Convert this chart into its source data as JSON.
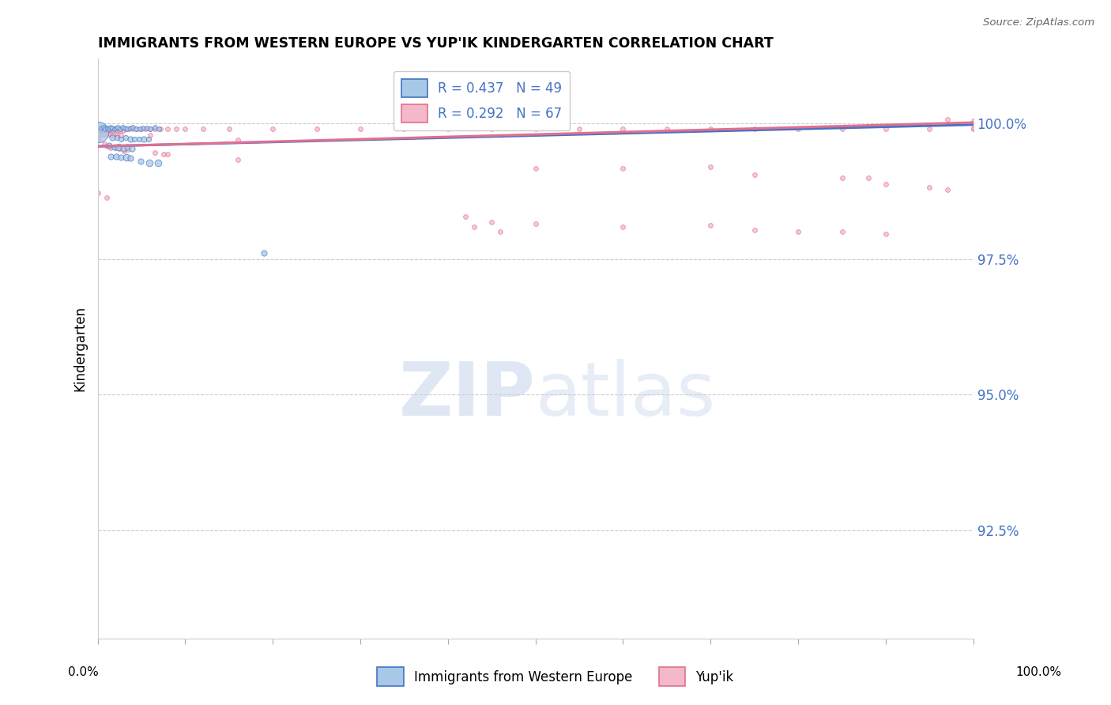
{
  "title": "IMMIGRANTS FROM WESTERN EUROPE VS YUP'IK KINDERGARTEN CORRELATION CHART",
  "source": "Source: ZipAtlas.com",
  "ylabel": "Kindergarten",
  "ytick_labels": [
    "100.0%",
    "97.5%",
    "95.0%",
    "92.5%"
  ],
  "ytick_values": [
    1.0,
    0.975,
    0.95,
    0.925
  ],
  "xlim": [
    0.0,
    1.0
  ],
  "ylim": [
    0.905,
    1.012
  ],
  "color_blue": "#a8c8e8",
  "color_pink": "#f4b8c8",
  "line_blue": "#4472c4",
  "line_pink": "#e07090",
  "watermark_color": "#dde8f4",
  "blue_points": [
    [
      0.0,
      0.9985,
      55
    ],
    [
      0.004,
      0.9992,
      12
    ],
    [
      0.007,
      0.9993,
      12
    ],
    [
      0.009,
      0.999,
      12
    ],
    [
      0.011,
      0.9992,
      12
    ],
    [
      0.013,
      0.9991,
      12
    ],
    [
      0.015,
      0.9993,
      12
    ],
    [
      0.017,
      0.9992,
      12
    ],
    [
      0.019,
      0.9991,
      12
    ],
    [
      0.021,
      0.9992,
      12
    ],
    [
      0.023,
      0.9993,
      12
    ],
    [
      0.026,
      0.9991,
      12
    ],
    [
      0.028,
      0.9993,
      12
    ],
    [
      0.031,
      0.9992,
      12
    ],
    [
      0.034,
      0.999,
      12
    ],
    [
      0.037,
      0.9992,
      12
    ],
    [
      0.04,
      0.9993,
      12
    ],
    [
      0.044,
      0.9991,
      12
    ],
    [
      0.048,
      0.999,
      12
    ],
    [
      0.052,
      0.9992,
      12
    ],
    [
      0.056,
      0.9992,
      12
    ],
    [
      0.06,
      0.9991,
      12
    ],
    [
      0.065,
      0.9993,
      12
    ],
    [
      0.07,
      0.9991,
      12
    ],
    [
      0.017,
      0.9975,
      15
    ],
    [
      0.022,
      0.9975,
      13
    ],
    [
      0.027,
      0.9972,
      13
    ],
    [
      0.032,
      0.9975,
      13
    ],
    [
      0.037,
      0.9972,
      15
    ],
    [
      0.042,
      0.9972,
      13
    ],
    [
      0.047,
      0.9972,
      13
    ],
    [
      0.053,
      0.9972,
      15
    ],
    [
      0.058,
      0.9972,
      13
    ],
    [
      0.013,
      0.996,
      15
    ],
    [
      0.019,
      0.9957,
      15
    ],
    [
      0.024,
      0.9957,
      18
    ],
    [
      0.029,
      0.9954,
      15
    ],
    [
      0.034,
      0.9957,
      15
    ],
    [
      0.039,
      0.9954,
      15
    ],
    [
      0.015,
      0.994,
      15
    ],
    [
      0.021,
      0.994,
      15
    ],
    [
      0.027,
      0.9938,
      15
    ],
    [
      0.033,
      0.9938,
      18
    ],
    [
      0.037,
      0.9936,
      15
    ],
    [
      0.049,
      0.993,
      15
    ],
    [
      0.059,
      0.9928,
      18
    ],
    [
      0.069,
      0.9928,
      18
    ],
    [
      0.19,
      0.9762,
      15
    ]
  ],
  "pink_points": [
    [
      0.0,
      0.999,
      12
    ],
    [
      0.002,
      0.9988,
      12
    ],
    [
      0.004,
      0.999,
      12
    ],
    [
      0.006,
      0.9988,
      12
    ],
    [
      0.008,
      0.9988,
      12
    ],
    [
      0.01,
      0.9988,
      12
    ],
    [
      0.012,
      0.9988,
      12
    ],
    [
      0.014,
      0.9988,
      12
    ],
    [
      0.016,
      0.9988,
      12
    ],
    [
      0.018,
      0.9988,
      12
    ],
    [
      0.02,
      0.9988,
      12
    ],
    [
      0.023,
      0.9988,
      12
    ],
    [
      0.026,
      0.9988,
      12
    ],
    [
      0.029,
      0.9988,
      12
    ],
    [
      0.032,
      0.999,
      12
    ],
    [
      0.036,
      0.999,
      12
    ],
    [
      0.04,
      0.999,
      12
    ],
    [
      0.045,
      0.999,
      12
    ],
    [
      0.05,
      0.999,
      12
    ],
    [
      0.055,
      0.999,
      12
    ],
    [
      0.06,
      0.999,
      12
    ],
    [
      0.065,
      0.999,
      12
    ],
    [
      0.072,
      0.999,
      12
    ],
    [
      0.08,
      0.999,
      12
    ],
    [
      0.09,
      0.999,
      12
    ],
    [
      0.1,
      0.999,
      12
    ],
    [
      0.12,
      0.999,
      12
    ],
    [
      0.15,
      0.999,
      12
    ],
    [
      0.2,
      0.999,
      12
    ],
    [
      0.25,
      0.999,
      12
    ],
    [
      0.3,
      0.999,
      12
    ],
    [
      0.35,
      0.999,
      12
    ],
    [
      0.4,
      0.999,
      12
    ],
    [
      0.45,
      0.999,
      12
    ],
    [
      0.5,
      0.999,
      12
    ],
    [
      0.55,
      0.999,
      12
    ],
    [
      0.6,
      0.999,
      12
    ],
    [
      0.65,
      0.999,
      12
    ],
    [
      0.7,
      0.999,
      12
    ],
    [
      0.75,
      0.999,
      12
    ],
    [
      0.8,
      0.999,
      12
    ],
    [
      0.85,
      0.999,
      12
    ],
    [
      0.9,
      0.999,
      12
    ],
    [
      0.95,
      0.999,
      12
    ],
    [
      1.0,
      0.999,
      12
    ],
    [
      0.0,
      0.998,
      12
    ],
    [
      0.003,
      0.998,
      12
    ],
    [
      0.006,
      0.998,
      12
    ],
    [
      0.009,
      0.998,
      12
    ],
    [
      0.012,
      0.998,
      12
    ],
    [
      0.015,
      0.998,
      12
    ],
    [
      0.018,
      0.9978,
      12
    ],
    [
      0.022,
      0.9978,
      12
    ],
    [
      0.027,
      0.9978,
      12
    ],
    [
      0.06,
      0.9978,
      12
    ],
    [
      0.16,
      0.997,
      12
    ],
    [
      0.0,
      0.997,
      12
    ],
    [
      0.008,
      0.9962,
      12
    ],
    [
      0.01,
      0.9958,
      12
    ],
    [
      0.015,
      0.9956,
      12
    ],
    [
      0.02,
      0.9956,
      12
    ],
    [
      0.025,
      0.9954,
      12
    ],
    [
      0.03,
      0.995,
      12
    ],
    [
      0.035,
      0.9952,
      12
    ],
    [
      0.065,
      0.9946,
      12
    ],
    [
      0.075,
      0.9944,
      12
    ],
    [
      0.08,
      0.9944,
      12
    ],
    [
      0.16,
      0.9934,
      12
    ],
    [
      0.5,
      0.9918,
      12
    ],
    [
      0.6,
      0.9918,
      12
    ],
    [
      0.7,
      0.992,
      12
    ],
    [
      0.75,
      0.9906,
      12
    ],
    [
      0.85,
      0.99,
      12
    ],
    [
      0.88,
      0.99,
      12
    ],
    [
      0.9,
      0.9888,
      12
    ],
    [
      0.95,
      0.9882,
      12
    ],
    [
      0.97,
      0.9878,
      12
    ],
    [
      1.0,
      0.9992,
      12
    ],
    [
      0.0,
      0.9872,
      12
    ],
    [
      0.01,
      0.9864,
      12
    ],
    [
      0.42,
      0.9828,
      12
    ],
    [
      0.45,
      0.9818,
      12
    ],
    [
      0.43,
      0.981,
      12
    ],
    [
      0.46,
      0.98,
      12
    ],
    [
      0.5,
      0.9816,
      12
    ],
    [
      0.6,
      0.981,
      12
    ],
    [
      0.7,
      0.9812,
      12
    ],
    [
      0.75,
      0.9804,
      12
    ],
    [
      0.8,
      0.98,
      12
    ],
    [
      0.85,
      0.98,
      12
    ],
    [
      0.9,
      0.9796,
      12
    ],
    [
      0.97,
      1.0008,
      12
    ],
    [
      1.0,
      1.0005,
      12
    ]
  ],
  "blue_line": [
    0.0,
    1.0,
    0.9958,
    0.9998
  ],
  "pink_line": [
    0.0,
    1.0,
    0.9958,
    1.0002
  ]
}
